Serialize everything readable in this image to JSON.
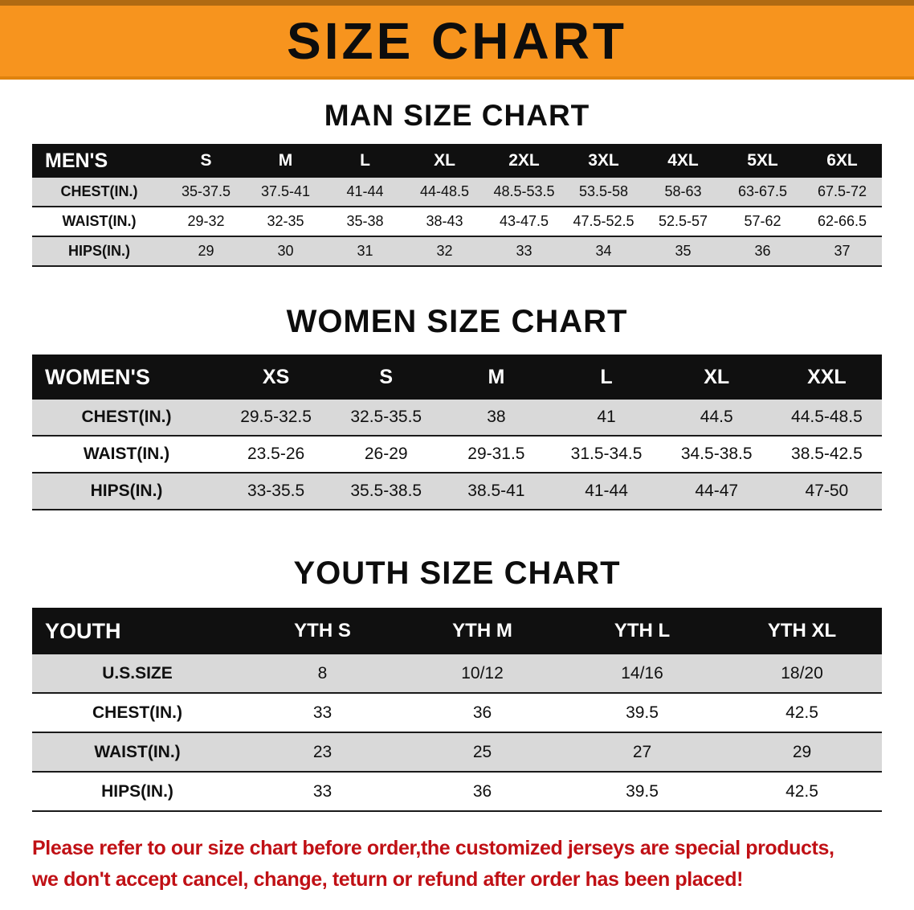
{
  "banner": {
    "title": "SIZE CHART",
    "bg_color": "#f7941e"
  },
  "sections": {
    "men": {
      "heading": "MAN SIZE CHART",
      "table": {
        "header": [
          "MEN'S",
          "S",
          "M",
          "L",
          "XL",
          "2XL",
          "3XL",
          "4XL",
          "5XL",
          "6XL"
        ],
        "rows": [
          [
            "CHEST(IN.)",
            "35-37.5",
            "37.5-41",
            "41-44",
            "44-48.5",
            "48.5-53.5",
            "53.5-58",
            "58-63",
            "63-67.5",
            "67.5-72"
          ],
          [
            "WAIST(IN.)",
            "29-32",
            "32-35",
            "35-38",
            "38-43",
            "43-47.5",
            "47.5-52.5",
            "52.5-57",
            "57-62",
            "62-66.5"
          ],
          [
            "HIPS(IN.)",
            "29",
            "30",
            "31",
            "32",
            "33",
            "34",
            "35",
            "36",
            "37"
          ]
        ]
      }
    },
    "women": {
      "heading": "WOMEN SIZE CHART",
      "table": {
        "header": [
          "WOMEN'S",
          "XS",
          "S",
          "M",
          "L",
          "XL",
          "XXL"
        ],
        "rows": [
          [
            "CHEST(IN.)",
            "29.5-32.5",
            "32.5-35.5",
            "38",
            "41",
            "44.5",
            "44.5-48.5"
          ],
          [
            "WAIST(IN.)",
            "23.5-26",
            "26-29",
            "29-31.5",
            "31.5-34.5",
            "34.5-38.5",
            "38.5-42.5"
          ],
          [
            "HIPS(IN.)",
            "33-35.5",
            "35.5-38.5",
            "38.5-41",
            "41-44",
            "44-47",
            "47-50"
          ]
        ]
      }
    },
    "youth": {
      "heading": "YOUTH SIZE CHART",
      "table": {
        "header": [
          "YOUTH",
          "YTH S",
          "YTH M",
          "YTH L",
          "YTH XL"
        ],
        "rows": [
          [
            "U.S.SIZE",
            "8",
            "10/12",
            "14/16",
            "18/20"
          ],
          [
            "CHEST(IN.)",
            "33",
            "36",
            "39.5",
            "42.5"
          ],
          [
            "WAIST(IN.)",
            "23",
            "25",
            "27",
            "29"
          ],
          [
            "HIPS(IN.)",
            "33",
            "36",
            "39.5",
            "42.5"
          ]
        ]
      }
    }
  },
  "disclaimer": {
    "color": "#c01015",
    "line1": "Please refer to our size chart before order,the customized jerseys are special products,",
    "line2": "we don't accept cancel, change, teturn or refund after order has been placed!"
  }
}
